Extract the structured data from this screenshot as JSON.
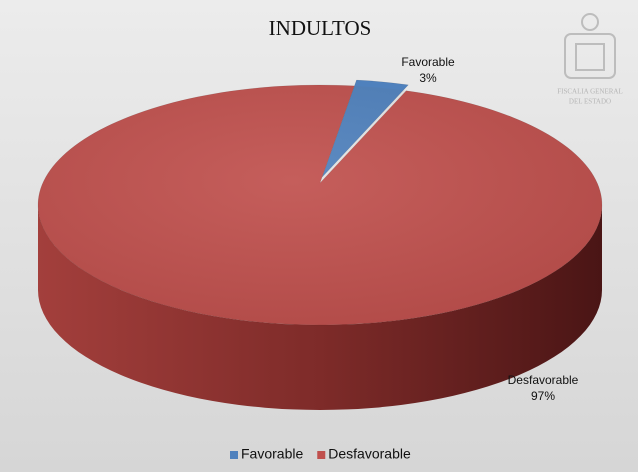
{
  "chart_data": {
    "type": "pie",
    "title": "INDULTOS",
    "categories": [
      "Favorable",
      "Desfavorable"
    ],
    "values": [
      3,
      97
    ],
    "value_labels": [
      "3%",
      "97%"
    ],
    "colors": [
      "#4f81bd",
      "#c0504d"
    ],
    "legend": "bottom"
  },
  "logo": {
    "lines": [
      "FISCALIA GENERAL",
      "DEL ESTADO"
    ]
  }
}
